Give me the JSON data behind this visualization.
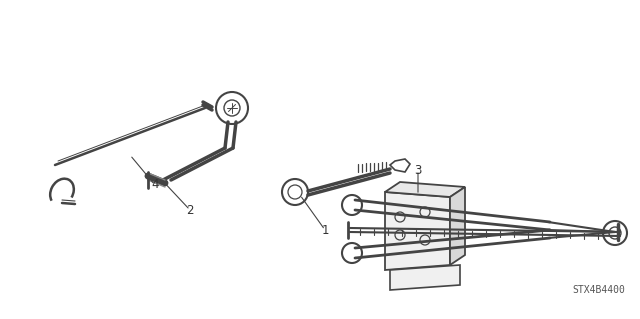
{
  "bg_color": "#ffffff",
  "line_color": "#444444",
  "label_color": "#333333",
  "figsize": [
    6.4,
    3.19
  ],
  "dpi": 100,
  "watermark": "STX4B4400"
}
